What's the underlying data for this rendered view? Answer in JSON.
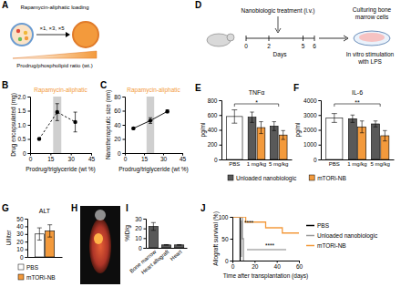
{
  "panel_labels": [
    "A",
    "B",
    "C",
    "D",
    "E",
    "F",
    "G",
    "H",
    "I",
    "J"
  ],
  "schematic_a": {
    "title": "Rapamycin-aliphatic loading",
    "steps": "×1, ×3, ×5",
    "axis_label": "Prodrug/phospholipid ratio (wt.)"
  },
  "schematic_d": {
    "title": "Nanobiologic treatment (i.v.)",
    "days": [
      0,
      2,
      5,
      6
    ],
    "axis_label": "Days",
    "step1": [
      "Culturing bone",
      "marrow cells"
    ],
    "step2": [
      "In vitro stimulation",
      "with LPS"
    ]
  },
  "chart_data": [
    {
      "type": "line",
      "title": "Rapamycin-aliphatic",
      "x_label": "Prodrug/triglyceride (wt %)",
      "y_label": "Drug encapsulated (mg)",
      "x": [
        6.7,
        20,
        33.3
      ],
      "values": [
        0.5,
        1.45,
        1.1
      ],
      "errors": [
        0.03,
        0.3,
        0.35
      ],
      "band": [
        17,
        23
      ],
      "color": "#000000",
      "marker": "circle",
      "line_style": "dashed",
      "xlim": [
        0,
        45
      ],
      "xticks": [
        0,
        15,
        30,
        45
      ],
      "ylim": [
        0,
        2
      ],
      "yticks": [
        0,
        0.5,
        {
          "value": 1,
          "label": "1.0"
        },
        1.5,
        {
          "value": 2,
          "label": "2.0"
        }
      ]
    },
    {
      "type": "line",
      "title": "Rapamycin-aliphatic",
      "x_label": "Prodrug/triglyceride (wt %)",
      "y_label": "Nanotherapeutic size (nm)",
      "x": [
        6.7,
        20,
        33.3
      ],
      "values": [
        35,
        46,
        59
      ],
      "errors": [
        1,
        4,
        2
      ],
      "band": [
        17,
        23
      ],
      "color": "#000000",
      "marker": "circle",
      "line_style": "solid",
      "xlim": [
        0,
        45
      ],
      "xticks": [
        0,
        15,
        30,
        45
      ],
      "ylim": [
        0,
        80
      ],
      "yticks": [
        0,
        20,
        40,
        60,
        80
      ]
    },
    {
      "type": "bar",
      "title": "TNFα",
      "y_label": "pg/ml",
      "categories": [
        "PBS",
        "1 mg/kg",
        "5 mg/kg"
      ],
      "series": [
        {
          "color": "#ffffff",
          "values": [
            580,
            null,
            null
          ],
          "errors": [
            90,
            null,
            null
          ]
        },
        {
          "color": "#595959",
          "values": [
            null,
            570,
            450
          ],
          "errors": [
            null,
            70,
            60
          ]
        },
        {
          "color": "#f39a3c",
          "values": [
            null,
            430,
            330
          ],
          "errors": [
            null,
            80,
            60
          ]
        }
      ],
      "annotations": [
        {
          "text": "*",
          "from": "PBS",
          "to": "5 mg/kg"
        }
      ],
      "ylim": [
        0,
        800
      ],
      "yticks": [
        0,
        200,
        400,
        600,
        800
      ]
    },
    {
      "type": "bar",
      "title": "IL-6",
      "y_label": "pg/ml",
      "categories": [
        "PBS",
        "1 mg/kg",
        "5 mg/kg"
      ],
      "series": [
        {
          "color": "#ffffff",
          "values": [
            2800,
            null,
            null
          ],
          "errors": [
            300,
            null,
            null
          ]
        },
        {
          "name": "Unloaded nanobiologic",
          "color": "#595959",
          "values": [
            null,
            2750,
            2400
          ],
          "errors": [
            null,
            250,
            200
          ]
        },
        {
          "name": "mTORi-NB",
          "color": "#f39a3c",
          "values": [
            null,
            2200,
            1600
          ],
          "errors": [
            null,
            400,
            350
          ]
        }
      ],
      "annotations": [
        {
          "text": "**",
          "from": "PBS",
          "to": "5 mg/kg"
        }
      ],
      "legend": "bottom",
      "ylim": [
        0,
        4000
      ],
      "yticks": [
        0,
        1000,
        2000,
        3000,
        4000
      ]
    },
    {
      "type": "bar",
      "title": "ALT",
      "y_label": "U/liter",
      "categories": [
        null
      ],
      "series": [
        {
          "name": "PBS",
          "color": "#ffffff",
          "values": [
            30
          ],
          "errors": [
            8
          ]
        },
        {
          "name": "mTORi-NB",
          "color": "#f39a3c",
          "values": [
            34
          ],
          "errors": [
            8
          ]
        }
      ],
      "legend": "bottom",
      "tick_labels": "y",
      "ylim": [
        0,
        50
      ],
      "yticks": [
        0,
        10,
        20,
        30,
        40,
        50
      ]
    },
    {
      "type": "bar",
      "y_label": "%ID/g",
      "categories": [
        "Bone marrow",
        "Heart allograft",
        "Heart"
      ],
      "values": [
        22,
        3,
        3
      ],
      "errors": [
        4,
        0.3,
        0.3
      ],
      "color": "#595959",
      "ylim": [
        0,
        30
      ],
      "yticks": [
        0,
        10,
        20,
        30
      ]
    },
    {
      "type": "line",
      "x_label": "Time after transplantation (days)",
      "y_label": "Allograft survival (%)",
      "line_style": "step",
      "legend": "right",
      "series": [
        {
          "name": "PBS",
          "color": "#000000",
          "x": [
            0,
            7
          ],
          "values": [
            100,
            0
          ]
        },
        {
          "name": "Unloaded nanobiologic",
          "color": "#9a9a9a",
          "x": [
            0,
            9,
            10
          ],
          "values": [
            100,
            50,
            0
          ]
        },
        {
          "name": "mTORi-NB",
          "color": "#f39a3c",
          "x": [
            0,
            12,
            30,
            45,
            60
          ],
          "values": [
            100,
            88,
            75,
            63,
            63
          ]
        }
      ],
      "annotations": [
        {
          "text": "****"
        },
        {
          "text": "****"
        }
      ],
      "xlim": [
        0,
        60
      ],
      "xticks": [
        0,
        20,
        40,
        60
      ],
      "ylim": [
        0,
        100
      ],
      "yticks": [
        0,
        50,
        100
      ]
    }
  ]
}
